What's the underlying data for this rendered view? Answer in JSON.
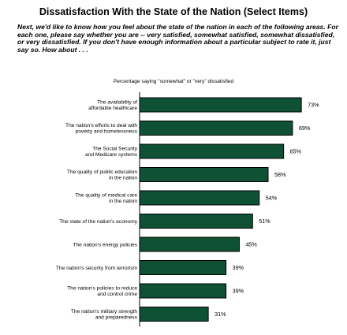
{
  "title": "Dissatisfaction With the State of the Nation (Select Items)",
  "question": "Next, we'd like to know how you feel about the state of the nation in each of the following areas. For each one, please say whether you are -- very satisfied, somewhat satisfied, somewhat dissatisfied, or very dissatisfied. If you don't have enough information about a particular subject to rate it, just say so. How about . . .",
  "colors": {
    "bar": "#0f5135",
    "bar_border": "#000000",
    "background": "#ffffff"
  },
  "chart_data": {
    "type": "bar",
    "orientation": "horizontal",
    "title": "Dissatisfaction With the State of the Nation (Select Items)",
    "subtitle": "Percentage saying \"somewhat\" or \"very\" dissatisfied",
    "categories": [
      [
        "The availability of",
        "affordable healthcare"
      ],
      [
        "The nation's efforts to deal with",
        "poverty and homelessness"
      ],
      [
        "The Social Security",
        "and Medicare systems"
      ],
      [
        "The quality of public education",
        "in the nation"
      ],
      [
        "The quality of medical care",
        "in the nation"
      ],
      [
        "The state of the nation's economy"
      ],
      [
        "The nation's energy policies"
      ],
      [
        "The nation's security from terrorism"
      ],
      [
        "The nation's policies to reduce",
        "and control crime"
      ],
      [
        "The nation's military strength",
        "and preparedness"
      ]
    ],
    "values": [
      73,
      69,
      65,
      58,
      54,
      51,
      45,
      39,
      39,
      31
    ],
    "value_labels": [
      "73%",
      "69%",
      "65%",
      "58%",
      "54%",
      "51%",
      "45%",
      "39%",
      "39%",
      "31%"
    ],
    "xlim": [
      0,
      100
    ],
    "grid": false,
    "legend": "none"
  }
}
